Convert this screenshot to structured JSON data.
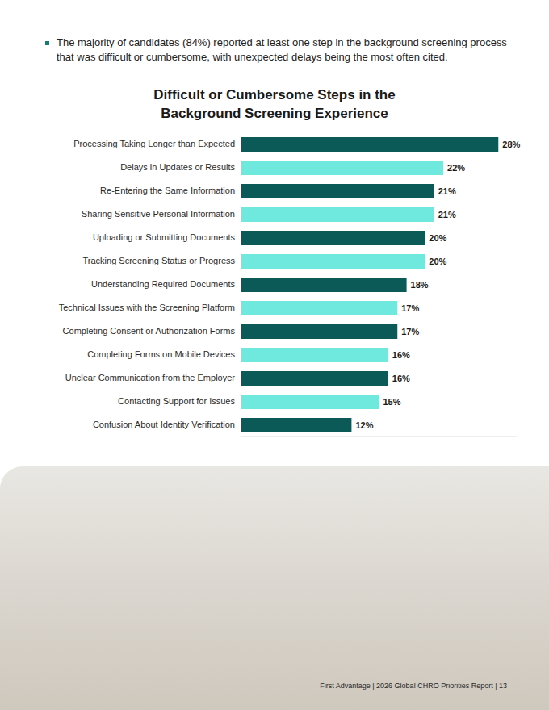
{
  "chart_data": {
    "type": "bar",
    "orientation": "horizontal",
    "title": "Difficult or Cumbersome Steps in the Background Screening Experience",
    "categories": [
      "Processing Taking Longer than Expected",
      "Delays in Updates or Results",
      "Re-Entering the Same Information",
      "Sharing Sensitive Personal Information",
      "Uploading or Submitting Documents",
      "Tracking Screening Status or Progress",
      "Understanding Required Documents",
      "Technical Issues with the Screening Platform",
      "Completing Consent or Authorization Forms",
      "Completing Forms on Mobile Devices",
      "Unclear Communication from the Employer",
      "Contacting Support for Issues",
      "Confusion About Identity Verification"
    ],
    "values": [
      28,
      22,
      21,
      21,
      20,
      20,
      18,
      17,
      17,
      16,
      16,
      15,
      12
    ],
    "value_labels": [
      "28%",
      "22%",
      "21%",
      "21%",
      "20%",
      "20%",
      "18%",
      "17%",
      "17%",
      "16%",
      "16%",
      "15%",
      "12%"
    ],
    "colors": [
      "#0b5a58",
      "#6fe8de",
      "#0b5a58",
      "#6fe8de",
      "#0b5a58",
      "#6fe8de",
      "#0b5a58",
      "#6fe8de",
      "#0b5a58",
      "#6fe8de",
      "#0b5a58",
      "#6fe8de",
      "#0b5a58"
    ],
    "xlim": [
      0,
      30
    ],
    "grid": false,
    "data_labels": true,
    "tick_labels": "y"
  },
  "bullet": "The majority of candidates (84%) reported at least one step in the background screening process that was difficult or cumbersome, with unexpected delays being the most often cited.",
  "footer": "First Advantage  |  2026 Global CHRO Priorities Report  |  13"
}
